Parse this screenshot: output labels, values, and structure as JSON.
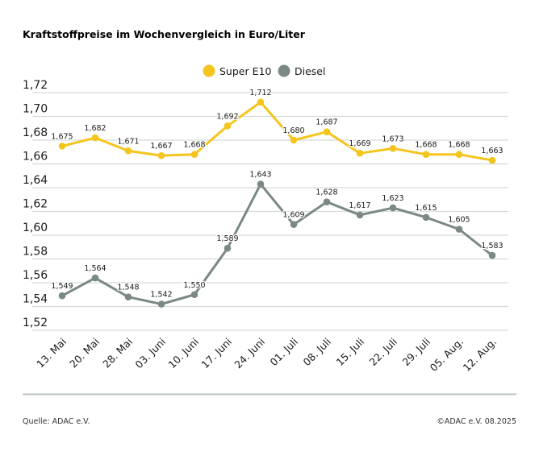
{
  "chart_data": {
    "type": "line",
    "title": "Kraftstoffpreise im Wochenvergleich in Euro/Liter",
    "categories": [
      "13. Mai",
      "20. Mai",
      "28. Mai",
      "03. Juni",
      "10. Juni",
      "17. Juni",
      "24. Juni",
      "01. Juli",
      "08. Juli",
      "15. Juli",
      "22. Juli",
      "29. Juli",
      "05. Aug.",
      "12. Aug."
    ],
    "series": [
      {
        "name": "Super E10",
        "color": "#f4c51d",
        "values": [
          1.675,
          1.682,
          1.671,
          1.667,
          1.668,
          1.692,
          1.712,
          1.68,
          1.687,
          1.669,
          1.673,
          1.668,
          1.668,
          1.663
        ],
        "labels": [
          "1,675",
          "1,682",
          "1,671",
          "1,667",
          "1,668",
          "1,692",
          "1,712",
          "1,680",
          "1,687",
          "1,669",
          "1,673",
          "1,668",
          "1,668",
          "1,663"
        ]
      },
      {
        "name": "Diesel",
        "color": "#7a8886",
        "values": [
          1.549,
          1.564,
          1.548,
          1.542,
          1.55,
          1.589,
          1.643,
          1.609,
          1.628,
          1.617,
          1.623,
          1.615,
          1.605,
          1.583
        ],
        "labels": [
          "1,549",
          "1,564",
          "1,548",
          "1,542",
          "1,550",
          "1,589",
          "1,643",
          "1,609",
          "1,628",
          "1,617",
          "1,623",
          "1,615",
          "1,605",
          "1,583"
        ]
      }
    ],
    "ylim": [
      1.52,
      1.72
    ],
    "yticks": [
      1.52,
      1.54,
      1.56,
      1.58,
      1.6,
      1.62,
      1.64,
      1.66,
      1.68,
      1.7,
      1.72
    ],
    "ytick_labels": [
      "1,52",
      "1,54",
      "1,56",
      "1,58",
      "1,60",
      "1,62",
      "1,64",
      "1,66",
      "1,68",
      "1,70",
      "1,72"
    ],
    "grid": true,
    "legend": "top-center",
    "xlabel": "",
    "ylabel": ""
  },
  "footer": {
    "source": "Quelle: ADAC e.V.",
    "copyright": "©ADAC e.V. 08.2025"
  }
}
